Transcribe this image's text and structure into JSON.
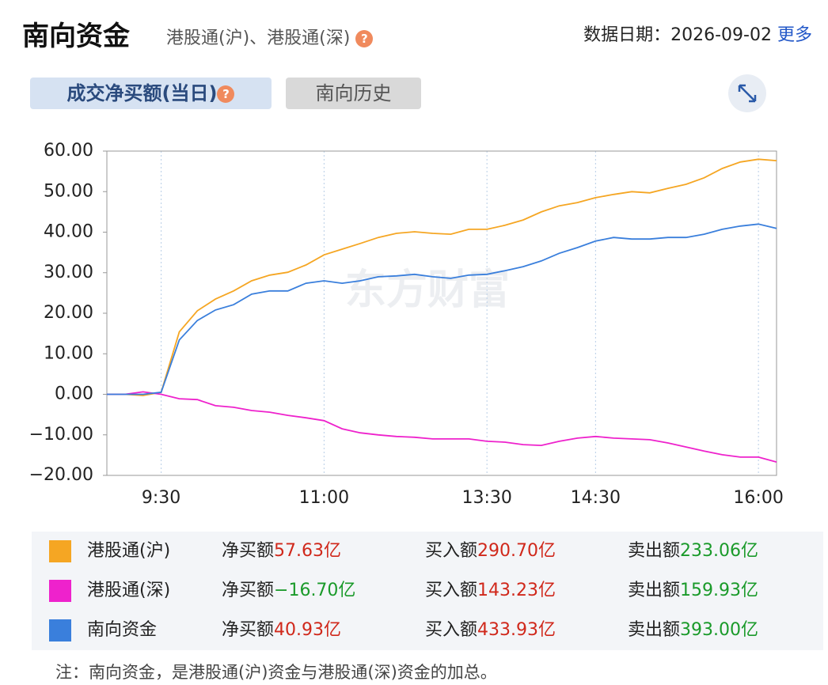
{
  "header": {
    "title": "南向资金",
    "subtitle": "港股通(沪)、港股通(深)",
    "help_icon": "?",
    "date_label": "数据日期：",
    "date": "2026-09-02",
    "more": "更多"
  },
  "tabs": [
    {
      "label": "成交净买额(当日)",
      "help_icon": "?"
    },
    {
      "label": "南向历史"
    }
  ],
  "chart_data": {
    "type": "line",
    "watermark": "东方财富",
    "categories": [
      null,
      null,
      null,
      "9:30",
      null,
      null,
      null,
      null,
      null,
      null,
      null,
      null,
      "11:00",
      null,
      null,
      null,
      null,
      null,
      null,
      null,
      null,
      "13:30",
      null,
      null,
      null,
      null,
      null,
      "14:30",
      null,
      null,
      null,
      null,
      null,
      null,
      null,
      null,
      "16:00",
      null
    ],
    "series": [
      {
        "name": "港股通(沪)",
        "color": "#f5a623",
        "values": [
          0,
          0,
          -0.3,
          0.5,
          15.4,
          20.6,
          23.5,
          25.5,
          28.0,
          29.4,
          30.1,
          31.9,
          34.4,
          35.8,
          37.2,
          38.7,
          39.7,
          40.1,
          39.7,
          39.5,
          40.7,
          40.7,
          41.7,
          43.0,
          45.0,
          46.5,
          47.3,
          48.5,
          49.3,
          50.0,
          49.7,
          50.8,
          51.8,
          53.4,
          55.7,
          57.3,
          58.0,
          57.63
        ]
      },
      {
        "name": "港股通(深)",
        "color": "#ee22cc",
        "values": [
          0,
          0,
          0.6,
          0,
          -1.1,
          -1.3,
          -2.8,
          -3.2,
          -4.0,
          -4.4,
          -5.2,
          -5.8,
          -6.5,
          -8.5,
          -9.5,
          -10.0,
          -10.4,
          -10.6,
          -11.0,
          -11.0,
          -11.0,
          -11.6,
          -11.8,
          -12.4,
          -12.6,
          -11.6,
          -10.8,
          -10.4,
          -10.8,
          -11.0,
          -11.2,
          -12.0,
          -13.0,
          -14.0,
          -14.9,
          -15.5,
          -15.5,
          -16.7
        ]
      },
      {
        "name": "南向资金",
        "color": "#3a7fdc",
        "values": [
          0,
          0,
          0,
          0.5,
          13.4,
          18.2,
          20.8,
          22.1,
          24.7,
          25.5,
          25.5,
          27.4,
          28.0,
          27.4,
          28.0,
          29.0,
          29.2,
          29.6,
          29.0,
          28.6,
          29.4,
          29.6,
          30.5,
          31.5,
          32.9,
          34.8,
          36.2,
          37.8,
          38.7,
          38.3,
          38.3,
          38.7,
          38.7,
          39.5,
          40.7,
          41.5,
          42.0,
          40.93
        ]
      }
    ],
    "ylim": [
      -20,
      60
    ],
    "yticks": [
      {
        "value": -20,
        "label": "−20.00"
      },
      {
        "value": -10,
        "label": "−10.00"
      },
      {
        "value": 0,
        "label": "0.00"
      },
      {
        "value": 10,
        "label": "10.00"
      },
      {
        "value": 20,
        "label": "20.00"
      },
      {
        "value": 30,
        "label": "30.00"
      },
      {
        "value": 40,
        "label": "40.00"
      },
      {
        "value": 50,
        "label": "50.00"
      },
      {
        "value": 60,
        "label": "60.00"
      }
    ],
    "grid": true
  },
  "summary": {
    "rows": [
      {
        "net_label": "净买额",
        "net": "57.63亿",
        "net_color": "#d0281b",
        "buy_label": "买入额",
        "buy": "290.70亿",
        "buy_color": "#d0281b",
        "sell_label": "卖出额",
        "sell": "233.06亿",
        "sell_color": "#1a9a2a"
      },
      {
        "net_label": "净买额",
        "net": "−16.70亿",
        "net_color": "#1a9a2a",
        "buy_label": "买入额",
        "buy": "143.23亿",
        "buy_color": "#d0281b",
        "sell_label": "卖出额",
        "sell": "159.93亿",
        "sell_color": "#1a9a2a"
      },
      {
        "net_label": "净买额",
        "net": "40.93亿",
        "net_color": "#d0281b",
        "buy_label": "买入额",
        "buy": "433.93亿",
        "buy_color": "#d0281b",
        "sell_label": "卖出额",
        "sell": "393.00亿",
        "sell_color": "#1a9a2a"
      }
    ]
  },
  "note": "注：南向资金，是港股通(沪)资金与港股通(深)资金的加总。"
}
